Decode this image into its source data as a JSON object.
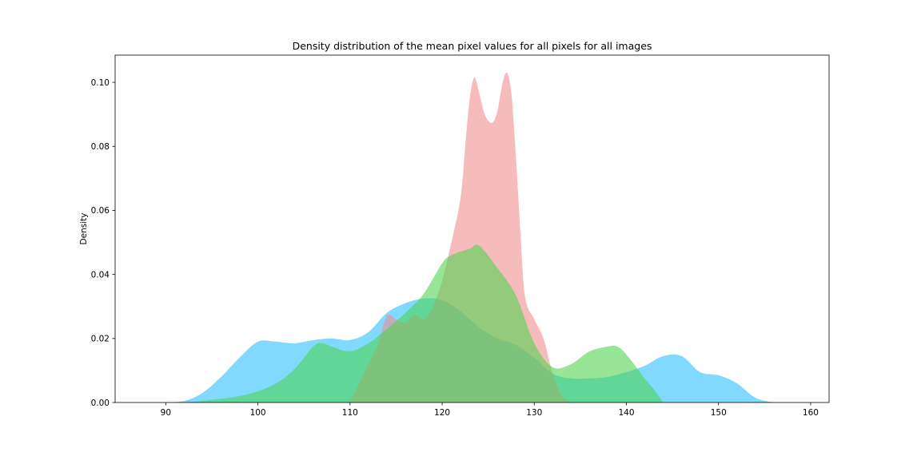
{
  "chart_data": {
    "type": "area",
    "title": "Density distribution of the mean pixel values for all pixels for all images",
    "xlabel": "",
    "ylabel": "Density",
    "xlim": [
      84.5,
      162
    ],
    "ylim": [
      0,
      0.1085
    ],
    "xticks": [
      90,
      100,
      110,
      120,
      130,
      140,
      150,
      160
    ],
    "yticks": [
      0.0,
      0.02,
      0.04,
      0.06,
      0.08,
      0.1
    ],
    "ytick_labels": [
      "0.00",
      "0.02",
      "0.04",
      "0.06",
      "0.08",
      "0.10"
    ],
    "grid": false,
    "legend": "none",
    "series": [
      {
        "color": "#33c2ff",
        "opacity": 0.62,
        "x": [
          90,
          92,
          94,
          96,
          98,
          100,
          102,
          104,
          106,
          108,
          110,
          112,
          114,
          116,
          118,
          120,
          122,
          124,
          126,
          128,
          130,
          132,
          134,
          136,
          138,
          140,
          142,
          144,
          146,
          148,
          150,
          152,
          154,
          156
        ],
        "y": [
          0.0,
          0.0005,
          0.003,
          0.008,
          0.014,
          0.019,
          0.019,
          0.0185,
          0.0195,
          0.02,
          0.0195,
          0.022,
          0.028,
          0.031,
          0.0325,
          0.032,
          0.0285,
          0.0235,
          0.02,
          0.018,
          0.014,
          0.009,
          0.0075,
          0.0075,
          0.008,
          0.0095,
          0.0115,
          0.0145,
          0.0145,
          0.0095,
          0.0085,
          0.006,
          0.0015,
          0.0
        ]
      },
      {
        "color": "#f08c8c",
        "opacity": 0.58,
        "x": [
          110,
          111,
          112,
          113,
          114,
          115,
          116,
          117,
          118,
          119,
          120,
          121,
          122,
          122.5,
          123,
          123.5,
          124,
          124.5,
          125,
          125.5,
          126,
          126.5,
          127,
          127.5,
          128,
          128.5,
          129,
          130,
          131,
          132,
          133,
          134
        ],
        "y": [
          0.0,
          0.006,
          0.012,
          0.018,
          0.027,
          0.026,
          0.025,
          0.0275,
          0.026,
          0.03,
          0.038,
          0.05,
          0.064,
          0.08,
          0.095,
          0.1015,
          0.097,
          0.091,
          0.088,
          0.0875,
          0.091,
          0.099,
          0.103,
          0.097,
          0.077,
          0.053,
          0.033,
          0.026,
          0.02,
          0.009,
          0.002,
          0.0
        ]
      },
      {
        "color": "#4cd44c",
        "opacity": 0.58,
        "x": [
          92,
          94,
          96,
          98,
          100,
          102,
          104,
          106,
          107,
          108,
          110,
          112,
          114,
          116,
          118,
          120,
          121,
          123,
          124,
          126,
          128,
          130,
          132,
          134,
          136,
          138,
          139,
          140,
          142,
          143,
          144
        ],
        "y": [
          0.0,
          0.0005,
          0.0012,
          0.002,
          0.0035,
          0.006,
          0.0105,
          0.0175,
          0.0185,
          0.0175,
          0.016,
          0.0185,
          0.023,
          0.028,
          0.034,
          0.0435,
          0.046,
          0.048,
          0.049,
          0.042,
          0.0335,
          0.0185,
          0.011,
          0.012,
          0.016,
          0.0175,
          0.0175,
          0.015,
          0.0075,
          0.004,
          0.0
        ]
      }
    ]
  }
}
